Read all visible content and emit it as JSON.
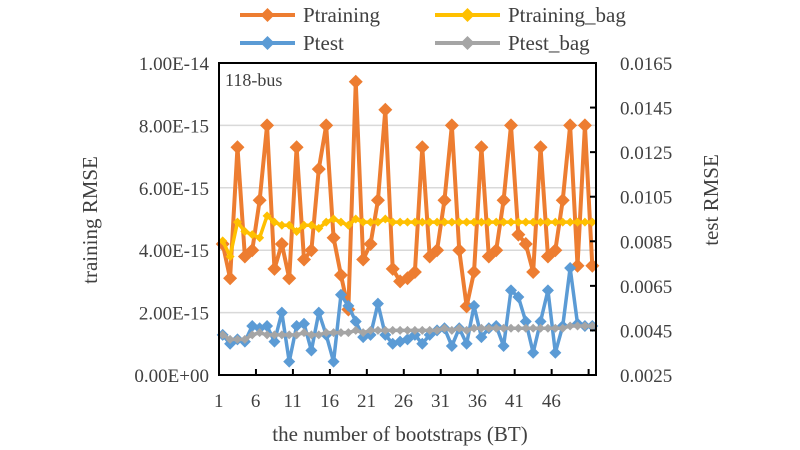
{
  "chart_data": {
    "type": "line",
    "annotation": "118-bus",
    "xlabel": "the number of bootstraps (BT)",
    "ylabel": "training RMSE",
    "y2label": "test RMSE",
    "x": [
      1,
      2,
      3,
      4,
      5,
      6,
      7,
      8,
      9,
      10,
      11,
      12,
      13,
      14,
      15,
      16,
      17,
      18,
      19,
      20,
      21,
      22,
      23,
      24,
      25,
      26,
      27,
      28,
      29,
      30,
      31,
      32,
      33,
      34,
      35,
      36,
      37,
      38,
      39,
      40,
      41,
      42,
      43,
      44,
      45,
      46,
      47,
      48,
      49,
      50,
      51
    ],
    "xticks": [
      "1",
      "6",
      "11",
      "16",
      "21",
      "26",
      "31",
      "36",
      "41",
      "46"
    ],
    "ylim": [
      0,
      1e-14
    ],
    "yticks": [
      "0.00E+00",
      "2.00E-15",
      "4.00E-15",
      "6.00E-15",
      "8.00E-15",
      "1.00E-14"
    ],
    "y2lim": [
      0.0025,
      0.0165
    ],
    "y2ticks": [
      "0.0025",
      "0.0045",
      "0.0065",
      "0.0085",
      "0.0105",
      "0.0125",
      "0.0145",
      "0.0165"
    ],
    "grid": true,
    "legend": "top",
    "series": [
      {
        "name": "Ptraining",
        "axis": "left",
        "color": "#ED7D31",
        "marker": "diamond",
        "values": [
          4.2e-15,
          3.1e-15,
          7.3e-15,
          3.8e-15,
          4e-15,
          5.6e-15,
          8e-15,
          3.4e-15,
          4.2e-15,
          3.1e-15,
          7.3e-15,
          3.7e-15,
          4e-15,
          6.6e-15,
          8e-15,
          4.4e-15,
          3.2e-15,
          2.1e-15,
          9.4e-15,
          3.7e-15,
          4.2e-15,
          5.6e-15,
          8.5e-15,
          3.4e-15,
          3e-15,
          3.1e-15,
          3.3e-15,
          7.3e-15,
          3.8e-15,
          4e-15,
          5.6e-15,
          8e-15,
          4e-15,
          2.2e-15,
          3.3e-15,
          7.3e-15,
          3.8e-15,
          4e-15,
          5.6e-15,
          8e-15,
          4.5e-15,
          4.2e-15,
          3.3e-15,
          7.3e-15,
          3.8e-15,
          4e-15,
          5.6e-15,
          8e-15,
          3.5e-15,
          8e-15,
          3.5e-15
        ]
      },
      {
        "name": "Ptraining_bag",
        "axis": "left",
        "color": "#FFC000",
        "marker": "diamond",
        "values": [
          4.3e-15,
          3.8e-15,
          4.9e-15,
          4.6e-15,
          4.5e-15,
          4.4e-15,
          5.1e-15,
          4.9e-15,
          4.8e-15,
          4.8e-15,
          4.6e-15,
          4.8e-15,
          4.8e-15,
          4.7e-15,
          4.9e-15,
          5e-15,
          4.9e-15,
          4.8e-15,
          5e-15,
          4.9e-15,
          4.9e-15,
          4.9e-15,
          5e-15,
          4.9e-15,
          4.9e-15,
          4.9e-15,
          4.9e-15,
          4.9e-15,
          4.9e-15,
          4.9e-15,
          4.9e-15,
          4.9e-15,
          4.9e-15,
          4.9e-15,
          4.9e-15,
          4.9e-15,
          4.9e-15,
          4.9e-15,
          4.9e-15,
          4.9e-15,
          4.9e-15,
          4.9e-15,
          4.9e-15,
          4.9e-15,
          4.9e-15,
          4.9e-15,
          4.9e-15,
          4.9e-15,
          4.9e-15,
          4.9e-15,
          4.9e-15
        ]
      },
      {
        "name": "Ptest",
        "axis": "right",
        "color": "#5B9BD5",
        "marker": "diamond",
        "values": [
          0.0043,
          0.0039,
          0.0041,
          0.004,
          0.0047,
          0.0046,
          0.0047,
          0.004,
          0.0053,
          0.0031,
          0.0047,
          0.0048,
          0.0036,
          0.0053,
          0.0043,
          0.0031,
          0.0061,
          0.0056,
          0.0049,
          0.0042,
          0.0043,
          0.0057,
          0.0043,
          0.0039,
          0.004,
          0.0041,
          0.0043,
          0.0039,
          0.0043,
          0.0045,
          0.0046,
          0.0038,
          0.0046,
          0.0039,
          0.0056,
          0.0042,
          0.0046,
          0.0047,
          0.0038,
          0.0063,
          0.006,
          0.0049,
          0.0035,
          0.0049,
          0.0063,
          0.0035,
          0.0047,
          0.0073,
          0.0048,
          0.0047,
          0.0047
        ]
      },
      {
        "name": "Ptest_bag",
        "axis": "right",
        "color": "#A5A5A5",
        "marker": "diamond",
        "values": [
          0.0043,
          0.0041,
          0.0041,
          0.0041,
          0.0043,
          0.0044,
          0.0043,
          0.0043,
          0.0043,
          0.0043,
          0.0043,
          0.0044,
          0.0043,
          0.0043,
          0.0044,
          0.0044,
          0.0044,
          0.0044,
          0.0045,
          0.0044,
          0.0045,
          0.0045,
          0.0045,
          0.0045,
          0.0045,
          0.0045,
          0.0045,
          0.0045,
          0.0045,
          0.0045,
          0.0046,
          0.0045,
          0.0046,
          0.0045,
          0.0046,
          0.0046,
          0.0046,
          0.0046,
          0.0046,
          0.0046,
          0.0046,
          0.0046,
          0.0046,
          0.0046,
          0.0046,
          0.0046,
          0.0046,
          0.0047,
          0.0047,
          0.0047,
          0.0047
        ]
      }
    ]
  }
}
